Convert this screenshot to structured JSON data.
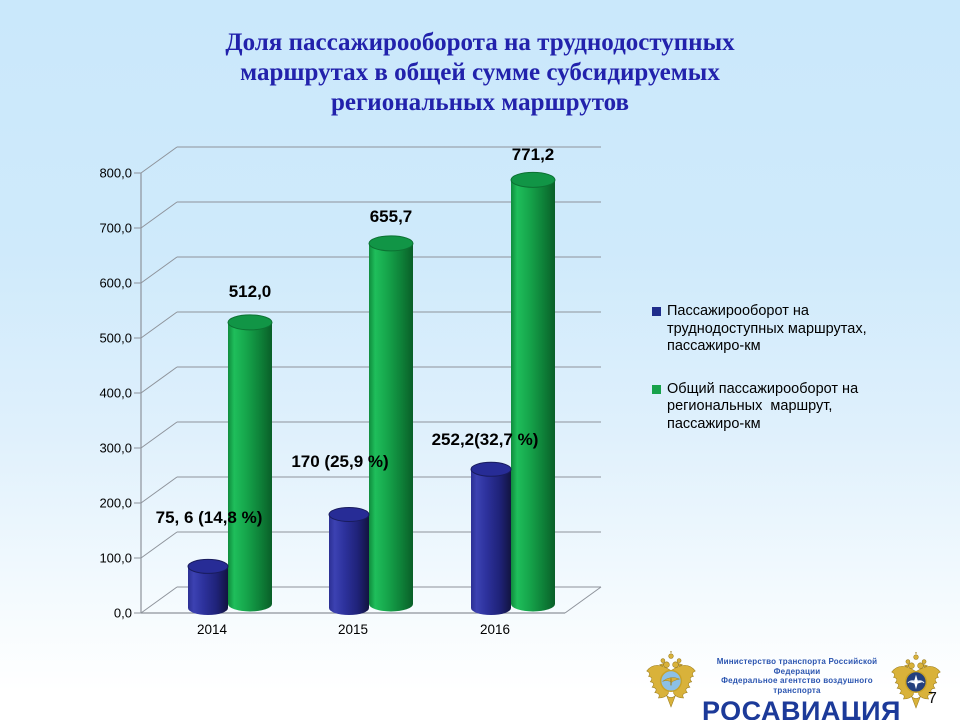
{
  "slide": {
    "title_lines": [
      "Доля пассажирооборота на труднодоступных",
      "маршрутах в общей сумме субсидируемых",
      "региональных маршрутов"
    ],
    "title_color": "#2222ac",
    "page_number": "7"
  },
  "chart_data": {
    "type": "bar",
    "style": "3d-cylinder",
    "title": "",
    "xlabel": "",
    "ylabel": "",
    "categories": [
      "2014",
      "2015",
      "2016"
    ],
    "series": [
      {
        "name": "Пассажирооборот на труднодоступных маршрутах, пассажиро-км",
        "color": "#2b2f9e",
        "values": [
          75.6,
          170,
          252.2
        ],
        "data_labels": [
          "75, 6 (14,8 %)",
          "170 (25,9 %)",
          "252,2(32,7 %)"
        ]
      },
      {
        "name": "Общий пассажирооборот на региональных маршрут, пассажиро-км",
        "color": "#17a24c",
        "values": [
          512.0,
          655.7,
          771.2
        ],
        "data_labels": [
          "512,0",
          "655,7",
          "771,2"
        ]
      }
    ],
    "ylim": [
      0,
      800
    ],
    "ytick_step": 100,
    "ytick_labels": [
      "0,0",
      "100,0",
      "200,0",
      "300,0",
      "400,0",
      "500,0",
      "600,0",
      "700,0",
      "800,0"
    ],
    "grid": true,
    "legend_position": "right"
  },
  "legend": {
    "items": [
      {
        "marker_color": "#1f2d8c",
        "lines": [
          "Пассажирооборот на",
          "труднодоступных маршрутах,",
          "пассажиро-км"
        ]
      },
      {
        "marker_color": "#18a24b",
        "lines": [
          "Общий пассажирооборот на",
          "региональных  маршрут,",
          "пассажиро-км"
        ]
      }
    ]
  },
  "footer": {
    "ministry_line1": "Министерство транспорта Российской Федерации",
    "ministry_line2": "Федеральное агентство воздушного транспорта",
    "agency_name": "РОСАВИАЦИЯ",
    "ministry_text_color": "#2b55b0",
    "agency_text_color": "#1c3a99",
    "left_emblem": "eagle-globe-emblem",
    "right_emblem": "eagle-star-emblem"
  }
}
